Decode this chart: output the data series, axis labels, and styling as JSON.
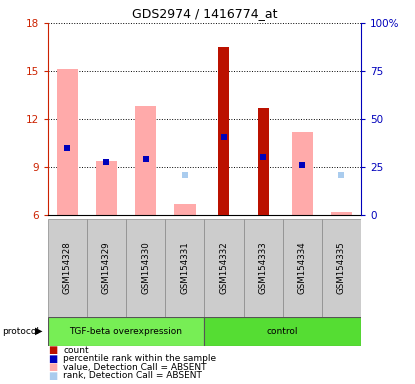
{
  "title": "GDS2974 / 1416774_at",
  "samples": [
    "GSM154328",
    "GSM154329",
    "GSM154330",
    "GSM154331",
    "GSM154332",
    "GSM154333",
    "GSM154334",
    "GSM154335"
  ],
  "ylim_left": [
    6,
    18
  ],
  "ylim_right": [
    0,
    100
  ],
  "yticks_left": [
    6,
    9,
    12,
    15,
    18
  ],
  "yticks_right": [
    0,
    25,
    50,
    75,
    100
  ],
  "ytick_labels_right": [
    "0",
    "25",
    "50",
    "75",
    "100%"
  ],
  "value_absent_bars": [
    15.1,
    9.4,
    12.8,
    6.7,
    null,
    null,
    11.2,
    6.2
  ],
  "rank_absent_squares": [
    10.2,
    null,
    null,
    8.5,
    null,
    null,
    9.1,
    8.5
  ],
  "count_bars": [
    null,
    null,
    null,
    null,
    16.5,
    12.7,
    null,
    null
  ],
  "percentile_squares": [
    10.2,
    9.3,
    9.5,
    null,
    10.85,
    9.6,
    9.1,
    null
  ],
  "bar_bottom": 6,
  "color_count": "#bb1100",
  "color_percentile": "#0000bb",
  "color_value_absent": "#ffaaaa",
  "color_rank_absent": "#aaccee",
  "ylabel_left_color": "#cc2200",
  "ylabel_right_color": "#0000bb",
  "tgf_color": "#77ee55",
  "ctrl_color": "#55dd33",
  "group_label_color": "#006600",
  "legend_items": [
    {
      "color": "#bb1100",
      "label": "count"
    },
    {
      "color": "#0000bb",
      "label": "percentile rank within the sample"
    },
    {
      "color": "#ffaaaa",
      "label": "value, Detection Call = ABSENT"
    },
    {
      "color": "#aaccee",
      "label": "rank, Detection Call = ABSENT"
    }
  ]
}
